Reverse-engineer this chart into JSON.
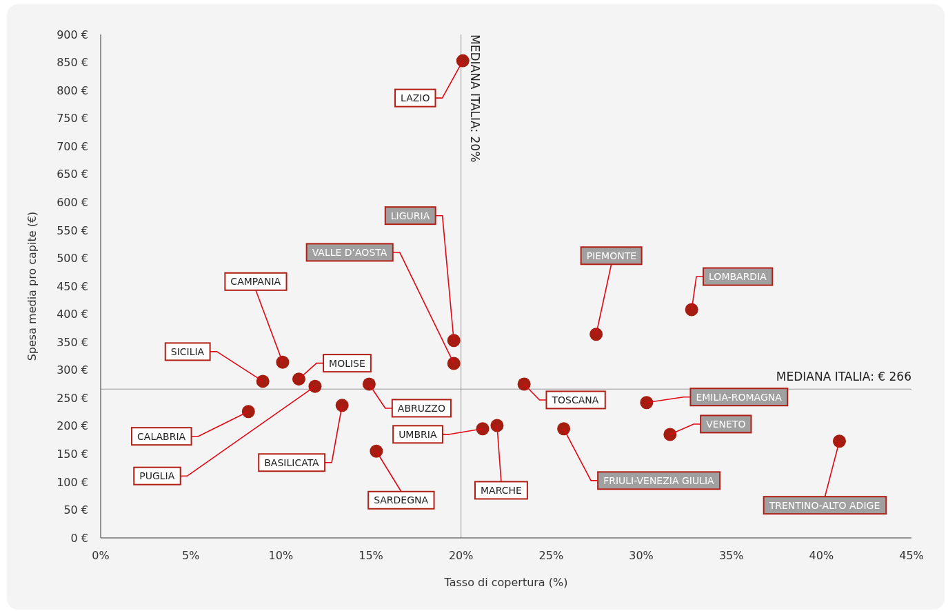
{
  "chart_data": {
    "type": "scatter",
    "xlabel": "Tasso di copertura (%)",
    "ylabel": "Spesa media pro capite (€)",
    "xlim": [
      0,
      45
    ],
    "xticks": [
      {
        "value": 0,
        "label": "0%"
      },
      {
        "value": 5,
        "label": "5%"
      },
      {
        "value": 10,
        "label": "10%"
      },
      {
        "value": 15,
        "label": "15%"
      },
      {
        "value": 20,
        "label": "20%"
      },
      {
        "value": 25,
        "label": "25%"
      },
      {
        "value": 30,
        "label": "30%"
      },
      {
        "value": 35,
        "label": "35%"
      },
      {
        "value": 40,
        "label": "40%"
      },
      {
        "value": 45,
        "label": "45%"
      }
    ],
    "ylim": [
      0,
      900
    ],
    "yticks": [
      {
        "value": 0,
        "label": "0 €"
      },
      {
        "value": 50,
        "label": "50 €"
      },
      {
        "value": 100,
        "label": "100 €"
      },
      {
        "value": 150,
        "label": "150 €"
      },
      {
        "value": 200,
        "label": "200 €"
      },
      {
        "value": 250,
        "label": "250 €"
      },
      {
        "value": 300,
        "label": "300 €"
      },
      {
        "value": 350,
        "label": "350 €"
      },
      {
        "value": 400,
        "label": "400 €"
      },
      {
        "value": 450,
        "label": "450 €"
      },
      {
        "value": 500,
        "label": "500 €"
      },
      {
        "value": 550,
        "label": "550 €"
      },
      {
        "value": 600,
        "label": "600 €"
      },
      {
        "value": 650,
        "label": "650 €"
      },
      {
        "value": 700,
        "label": "700 €"
      },
      {
        "value": 750,
        "label": "750 €"
      },
      {
        "value": 800,
        "label": "800 €"
      },
      {
        "value": 850,
        "label": "850 €"
      },
      {
        "value": 900,
        "label": "900 €"
      }
    ],
    "grid": false,
    "marker": "circle",
    "series": [
      {
        "color": "#a51c10",
        "x": [
          20.1,
          10.1,
          9.0,
          11.0,
          11.9,
          8.2,
          13.4,
          14.9,
          15.3,
          21.2,
          22.0,
          23.5
        ],
        "values": [
          853,
          314,
          280,
          284,
          271,
          226,
          237,
          275,
          155,
          195,
          201,
          275
        ]
      },
      {
        "color": "#a51c10",
        "x": [
          19.6,
          19.6,
          25.7,
          27.5,
          32.8,
          30.3,
          31.6,
          41.0
        ],
        "values": [
          353,
          312,
          195,
          364,
          408,
          242,
          185,
          173
        ]
      }
    ],
    "ref_lines": [
      {
        "axis": "x",
        "value": 20,
        "label": "MEDIANA ITALIA: 20%",
        "color": "#999999"
      },
      {
        "axis": "y",
        "value": 266,
        "label": "MEDIANA ITALIA: € 266",
        "color": "#999999"
      }
    ],
    "annotations": [
      {
        "text": "LAZIO",
        "x": 20.1,
        "y": 853
      },
      {
        "text": "LIGURIA",
        "x": 19.6,
        "y": 353
      },
      {
        "text": "VALLE D’AOSTA",
        "x": 19.6,
        "y": 312
      },
      {
        "text": "CAMPANIA",
        "x": 10.1,
        "y": 314
      },
      {
        "text": "SICILIA",
        "x": 9.0,
        "y": 280
      },
      {
        "text": "MOLISE",
        "x": 11.0,
        "y": 284
      },
      {
        "text": "PUGLIA",
        "x": 11.9,
        "y": 271
      },
      {
        "text": "CALABRIA",
        "x": 8.2,
        "y": 226
      },
      {
        "text": "BASILICATA",
        "x": 13.4,
        "y": 237
      },
      {
        "text": "ABRUZZO",
        "x": 14.9,
        "y": 275
      },
      {
        "text": "SARDEGNA",
        "x": 15.3,
        "y": 155
      },
      {
        "text": "UMBRIA",
        "x": 21.2,
        "y": 195
      },
      {
        "text": "MARCHE",
        "x": 22.0,
        "y": 201
      },
      {
        "text": "TOSCANA",
        "x": 23.5,
        "y": 275
      },
      {
        "text": "FRIULI-VENEZIA GIULIA",
        "x": 25.7,
        "y": 195
      },
      {
        "text": "PIEMONTE",
        "x": 27.5,
        "y": 364
      },
      {
        "text": "LOMBARDIA",
        "x": 32.8,
        "y": 408
      },
      {
        "text": "EMILIA-ROMAGNA",
        "x": 30.3,
        "y": 242
      },
      {
        "text": "VENETO",
        "x": 31.6,
        "y": 185
      },
      {
        "text": "TRENTINO-ALTO ADIGE",
        "x": 41.0,
        "y": 173
      }
    ]
  }
}
